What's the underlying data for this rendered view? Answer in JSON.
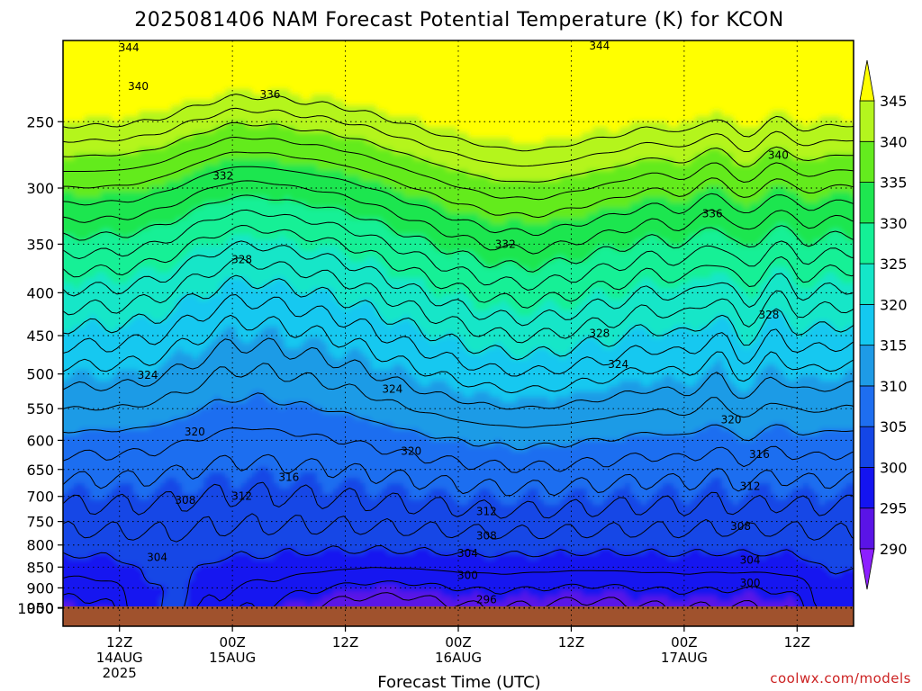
{
  "page": {
    "title": "2025081406 NAM Forecast Potential Temperature (K) for KCON",
    "credit": "coolwx.com/models"
  },
  "chart_data": {
    "type": "heatmap",
    "title": "2025081406 NAM Forecast Potential Temperature (K) for KCON",
    "xlabel": "Forecast Time (UTC)",
    "ylabel": "",
    "x_range_hours": [
      6,
      90
    ],
    "y_range_hpa": [
      200,
      1000
    ],
    "y_scale": "log",
    "y_inverted": true,
    "grid": true,
    "y_ticks": [
      250,
      300,
      350,
      400,
      450,
      500,
      550,
      600,
      650,
      700,
      750,
      800,
      850,
      900,
      950,
      1000
    ],
    "x_ticks": [
      {
        "hour": 12,
        "line1": "12Z",
        "line2": "14AUG",
        "line3": "2025"
      },
      {
        "hour": 24,
        "line1": "00Z",
        "line2": "15AUG",
        "line3": ""
      },
      {
        "hour": 36,
        "line1": "12Z",
        "line2": "",
        "line3": ""
      },
      {
        "hour": 48,
        "line1": "00Z",
        "line2": "16AUG",
        "line3": ""
      },
      {
        "hour": 60,
        "line1": "12Z",
        "line2": "",
        "line3": ""
      },
      {
        "hour": 72,
        "line1": "00Z",
        "line2": "17AUG",
        "line3": ""
      },
      {
        "hour": 84,
        "line1": "12Z",
        "line2": "",
        "line3": ""
      }
    ],
    "colorbar": {
      "levels": [
        285,
        290,
        295,
        300,
        305,
        310,
        315,
        320,
        325,
        330,
        335,
        340,
        345,
        350
      ],
      "colors": [
        "#8c1fff",
        "#5a14e6",
        "#1414f0",
        "#1446e6",
        "#1e6ef0",
        "#1e9be6",
        "#14c8f0",
        "#14e6c8",
        "#14f096",
        "#1ee650",
        "#64eb1e",
        "#b4f51e",
        "#ffff00"
      ],
      "tick_labels": [
        "290",
        "295",
        "300",
        "305",
        "310",
        "315",
        "320",
        "325",
        "330",
        "335",
        "340",
        "345"
      ],
      "tick_values": [
        290,
        295,
        300,
        305,
        310,
        315,
        320,
        325,
        330,
        335,
        340,
        345
      ],
      "extend": "both"
    },
    "ground": {
      "color": "#a0522d",
      "pressure_hpa": 1000
    },
    "contour_interval_k": 2,
    "contour_levels": [
      294,
      296,
      298,
      300,
      302,
      304,
      306,
      308,
      310,
      312,
      314,
      316,
      318,
      320,
      322,
      324,
      326,
      328,
      330,
      332,
      334,
      336,
      338,
      340,
      342,
      344
    ],
    "contour_labels": [
      {
        "value": "344",
        "hour": 13,
        "p": 204
      },
      {
        "value": "344",
        "hour": 63,
        "p": 203
      },
      {
        "value": "340",
        "hour": 14,
        "p": 227
      },
      {
        "value": "336",
        "hour": 28,
        "p": 232
      },
      {
        "value": "340",
        "hour": 82,
        "p": 274
      },
      {
        "value": "332",
        "hour": 23,
        "p": 290
      },
      {
        "value": "336",
        "hour": 75,
        "p": 322
      },
      {
        "value": "328",
        "hour": 25,
        "p": 365
      },
      {
        "value": "332",
        "hour": 53,
        "p": 350
      },
      {
        "value": "328",
        "hour": 81,
        "p": 425
      },
      {
        "value": "328",
        "hour": 63,
        "p": 447
      },
      {
        "value": "324",
        "hour": 65,
        "p": 487
      },
      {
        "value": "324",
        "hour": 15,
        "p": 502
      },
      {
        "value": "324",
        "hour": 41,
        "p": 521
      },
      {
        "value": "320",
        "hour": 20,
        "p": 586
      },
      {
        "value": "320",
        "hour": 77,
        "p": 567
      },
      {
        "value": "320",
        "hour": 43,
        "p": 618
      },
      {
        "value": "316",
        "hour": 30,
        "p": 664
      },
      {
        "value": "316",
        "hour": 80,
        "p": 624
      },
      {
        "value": "308",
        "hour": 19,
        "p": 707
      },
      {
        "value": "312",
        "hour": 25,
        "p": 700
      },
      {
        "value": "312",
        "hour": 79,
        "p": 681
      },
      {
        "value": "312",
        "hour": 51,
        "p": 730
      },
      {
        "value": "308",
        "hour": 78,
        "p": 760
      },
      {
        "value": "308",
        "hour": 51,
        "p": 780
      },
      {
        "value": "304",
        "hour": 16,
        "p": 828
      },
      {
        "value": "304",
        "hour": 49,
        "p": 819
      },
      {
        "value": "304",
        "hour": 79,
        "p": 834
      },
      {
        "value": "300",
        "hour": 49,
        "p": 870
      },
      {
        "value": "300",
        "hour": 79,
        "p": 888
      },
      {
        "value": "296",
        "hour": 51,
        "p": 930
      }
    ]
  }
}
